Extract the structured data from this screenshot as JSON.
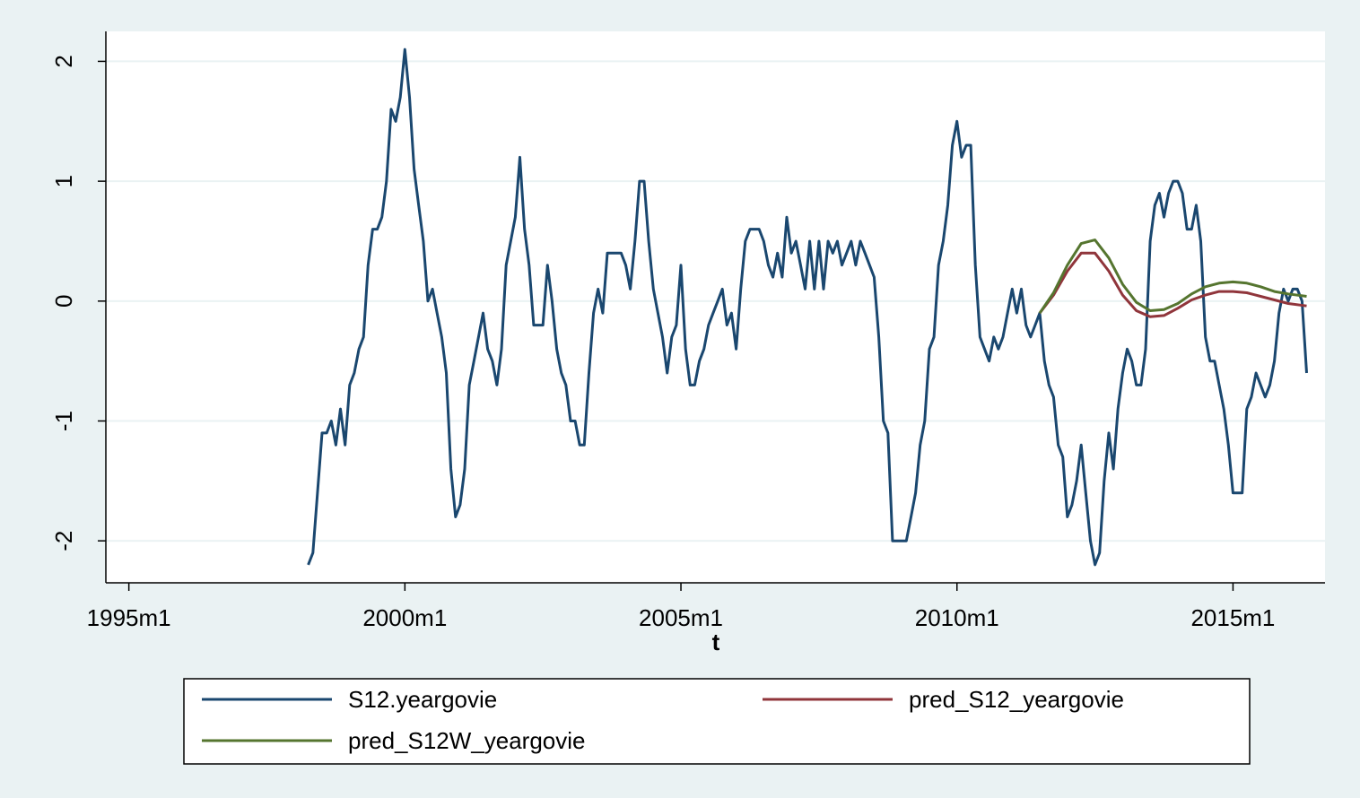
{
  "chart_data": {
    "type": "line",
    "xlabel": "t",
    "xlim": [
      "1994m8",
      "2016m9"
    ],
    "xticks": [
      "1995m1",
      "2000m1",
      "2005m1",
      "2010m1",
      "2015m1"
    ],
    "ylim": [
      -2.35,
      2.25
    ],
    "yticks": [
      -2,
      -1,
      0,
      1,
      2
    ],
    "grid": true,
    "series": [
      {
        "name": "S12.yeargovie",
        "color": "#1a476f",
        "x": [
          "1998m4",
          "1998m5",
          "1998m6",
          "1998m7",
          "1998m8",
          "1998m9",
          "1998m10",
          "1998m11",
          "1998m12",
          "1999m1",
          "1999m2",
          "1999m3",
          "1999m4",
          "1999m5",
          "1999m6",
          "1999m7",
          "1999m8",
          "1999m9",
          "1999m10",
          "1999m11",
          "1999m12",
          "2000m1",
          "2000m2",
          "2000m3",
          "2000m4",
          "2000m5",
          "2000m6",
          "2000m7",
          "2000m8",
          "2000m9",
          "2000m10",
          "2000m11",
          "2000m12",
          "2001m1",
          "2001m2",
          "2001m3",
          "2001m4",
          "2001m5",
          "2001m6",
          "2001m7",
          "2001m8",
          "2001m9",
          "2001m10",
          "2001m11",
          "2001m12",
          "2002m1",
          "2002m2",
          "2002m3",
          "2002m4",
          "2002m5",
          "2002m6",
          "2002m7",
          "2002m8",
          "2002m9",
          "2002m10",
          "2002m11",
          "2002m12",
          "2003m1",
          "2003m2",
          "2003m3",
          "2003m4",
          "2003m5",
          "2003m6",
          "2003m7",
          "2003m8",
          "2003m9",
          "2003m10",
          "2003m11",
          "2003m12",
          "2004m1",
          "2004m2",
          "2004m3",
          "2004m4",
          "2004m5",
          "2004m6",
          "2004m7",
          "2004m8",
          "2004m9",
          "2004m10",
          "2004m11",
          "2004m12",
          "2005m1",
          "2005m2",
          "2005m3",
          "2005m4",
          "2005m5",
          "2005m6",
          "2005m7",
          "2005m8",
          "2005m9",
          "2005m10",
          "2005m11",
          "2005m12",
          "2006m1",
          "2006m2",
          "2006m3",
          "2006m4",
          "2006m5",
          "2006m6",
          "2006m7",
          "2006m8",
          "2006m9",
          "2006m10",
          "2006m11",
          "2006m12",
          "2007m1",
          "2007m2",
          "2007m3",
          "2007m4",
          "2007m5",
          "2007m6",
          "2007m7",
          "2007m8",
          "2007m9",
          "2007m10",
          "2007m11",
          "2007m12",
          "2008m1",
          "2008m2",
          "2008m3",
          "2008m4",
          "2008m5",
          "2008m6",
          "2008m7",
          "2008m8",
          "2008m9",
          "2008m10",
          "2008m11",
          "2008m12",
          "2009m1",
          "2009m2",
          "2009m3",
          "2009m4",
          "2009m5",
          "2009m6",
          "2009m7",
          "2009m8",
          "2009m9",
          "2009m10",
          "2009m11",
          "2009m12",
          "2010m1",
          "2010m2",
          "2010m3",
          "2010m4",
          "2010m5",
          "2010m6",
          "2010m7",
          "2010m8",
          "2010m9",
          "2010m10",
          "2010m11",
          "2010m12",
          "2011m1",
          "2011m2",
          "2011m3",
          "2011m4",
          "2011m5",
          "2011m6",
          "2011m7",
          "2011m8",
          "2011m9",
          "2011m10",
          "2011m11",
          "2011m12",
          "2012m1",
          "2012m2",
          "2012m3",
          "2012m4",
          "2012m5",
          "2012m6",
          "2012m7",
          "2012m8",
          "2012m9",
          "2012m10",
          "2012m11",
          "2012m12",
          "2013m1",
          "2013m2",
          "2013m3",
          "2013m4",
          "2013m5",
          "2013m6",
          "2013m7",
          "2013m8",
          "2013m9",
          "2013m10",
          "2013m11",
          "2013m12",
          "2014m1",
          "2014m2",
          "2014m3",
          "2014m4",
          "2014m5",
          "2014m6",
          "2014m7",
          "2014m8",
          "2014m9",
          "2014m10",
          "2014m11",
          "2014m12",
          "2015m1",
          "2015m2",
          "2015m3",
          "2015m4",
          "2015m5",
          "2015m6",
          "2015m7",
          "2015m8",
          "2015m9",
          "2015m10",
          "2015m11",
          "2015m12",
          "2016m1",
          "2016m2",
          "2016m3",
          "2016m4",
          "2016m5"
        ],
        "values": [
          -2.2,
          -2.1,
          -1.6,
          -1.1,
          -1.1,
          -1.0,
          -1.2,
          -0.9,
          -1.2,
          -0.7,
          -0.6,
          -0.4,
          -0.3,
          0.3,
          0.6,
          0.6,
          0.7,
          1.0,
          1.6,
          1.5,
          1.7,
          2.1,
          1.7,
          1.1,
          0.8,
          0.5,
          0.0,
          0.1,
          -0.1,
          -0.3,
          -0.6,
          -1.4,
          -1.8,
          -1.7,
          -1.4,
          -0.7,
          -0.5,
          -0.3,
          -0.1,
          -0.4,
          -0.5,
          -0.7,
          -0.4,
          0.3,
          0.5,
          0.7,
          1.2,
          0.6,
          0.3,
          -0.2,
          -0.2,
          -0.2,
          0.3,
          0.0,
          -0.4,
          -0.6,
          -0.7,
          -1.0,
          -1.0,
          -1.2,
          -1.2,
          -0.6,
          -0.1,
          0.1,
          -0.1,
          0.4,
          0.4,
          0.4,
          0.4,
          0.3,
          0.1,
          0.5,
          1.0,
          1.0,
          0.5,
          0.1,
          -0.1,
          -0.3,
          -0.6,
          -0.3,
          -0.2,
          0.3,
          -0.4,
          -0.7,
          -0.7,
          -0.5,
          -0.4,
          -0.2,
          -0.1,
          0.0,
          0.1,
          -0.2,
          -0.1,
          -0.4,
          0.1,
          0.5,
          0.6,
          0.6,
          0.6,
          0.5,
          0.3,
          0.2,
          0.4,
          0.2,
          0.7,
          0.4,
          0.5,
          0.3,
          0.1,
          0.5,
          0.1,
          0.5,
          0.1,
          0.5,
          0.4,
          0.5,
          0.3,
          0.4,
          0.5,
          0.3,
          0.5,
          0.4,
          0.3,
          0.2,
          -0.3,
          -1.0,
          -1.1,
          -2.0,
          -2.0,
          -2.0,
          -2.0,
          -1.8,
          -1.6,
          -1.2,
          -1.0,
          -0.4,
          -0.3,
          0.3,
          0.5,
          0.8,
          1.3,
          1.5,
          1.2,
          1.3,
          1.3,
          0.3,
          -0.3,
          -0.4,
          -0.5,
          -0.3,
          -0.4,
          -0.3,
          -0.1,
          0.1,
          -0.1,
          0.1,
          -0.2,
          -0.3,
          -0.2,
          -0.1,
          -0.5,
          -0.7,
          -0.8,
          -1.2,
          -1.3,
          -1.8,
          -1.7,
          -1.5,
          -1.2,
          -1.6,
          -2.0,
          -2.2,
          -2.1,
          -1.5,
          -1.1,
          -1.4,
          -0.9,
          -0.6,
          -0.4,
          -0.5,
          -0.7,
          -0.7,
          -0.4,
          0.5,
          0.8,
          0.9,
          0.7,
          0.9,
          1.0,
          1.0,
          0.9,
          0.6,
          0.6,
          0.8,
          0.5,
          -0.3,
          -0.5,
          -0.5,
          -0.7,
          -0.9,
          -1.2,
          -1.6,
          -1.6,
          -1.6,
          -0.9,
          -0.8,
          -0.6,
          -0.7,
          -0.8,
          -0.7,
          -0.5,
          -0.1,
          0.1,
          0.0,
          0.1,
          0.1,
          0.0,
          -0.6
        ]
      },
      {
        "name": "pred_S12_yeargovie",
        "color": "#90353b",
        "x": [
          "2011m7",
          "2011m10",
          "2012m1",
          "2012m4",
          "2012m7",
          "2012m10",
          "2013m1",
          "2013m4",
          "2013m7",
          "2013m10",
          "2014m1",
          "2014m4",
          "2014m7",
          "2014m10",
          "2015m1",
          "2015m4",
          "2015m7",
          "2015m10",
          "2016m1",
          "2016m5"
        ],
        "values": [
          -0.1,
          0.05,
          0.25,
          0.4,
          0.4,
          0.25,
          0.05,
          -0.08,
          -0.13,
          -0.12,
          -0.06,
          0.01,
          0.05,
          0.08,
          0.08,
          0.07,
          0.04,
          0.01,
          -0.02,
          -0.04
        ]
      },
      {
        "name": "pred_S12W_yeargovie",
        "color": "#55752f",
        "x": [
          "2011m7",
          "2011m10",
          "2012m1",
          "2012m4",
          "2012m7",
          "2012m10",
          "2013m1",
          "2013m4",
          "2013m7",
          "2013m10",
          "2014m1",
          "2014m4",
          "2014m7",
          "2014m10",
          "2015m1",
          "2015m4",
          "2015m7",
          "2015m10",
          "2016m1",
          "2016m5"
        ],
        "values": [
          -0.1,
          0.07,
          0.3,
          0.48,
          0.51,
          0.36,
          0.14,
          -0.01,
          -0.08,
          -0.07,
          -0.02,
          0.06,
          0.12,
          0.15,
          0.16,
          0.15,
          0.12,
          0.08,
          0.06,
          0.04
        ]
      }
    ]
  }
}
